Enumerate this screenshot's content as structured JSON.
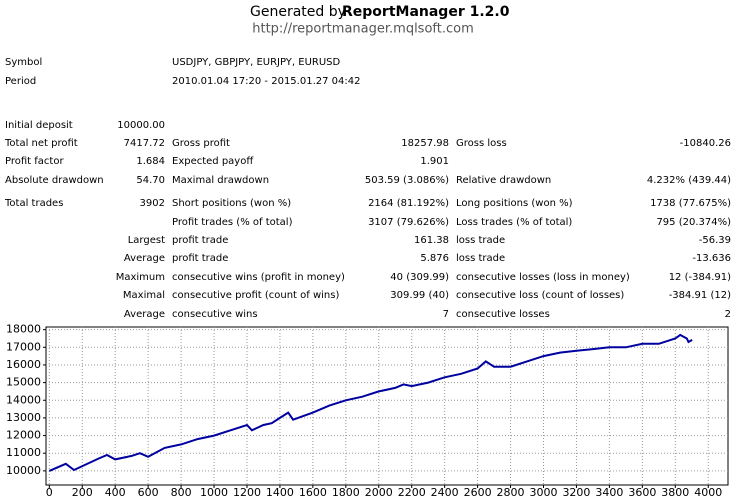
{
  "header": {
    "prefix": "Generated by",
    "app": "ReportManager 1.2.0",
    "url": "http://reportmanager.mqlsoft.com"
  },
  "info": [
    {
      "label": "Symbol",
      "value": "USDJPY, GBPJPY, EURJPY, EURUSD"
    },
    {
      "label": "Period",
      "value": "2010.01.04 17:20 - 2015.01.27 04:42"
    }
  ],
  "stats": [
    {
      "label1": "Initial deposit",
      "value1": "10000.00"
    },
    {
      "label1": "Total net profit",
      "value1": "7417.72",
      "label2": "Gross profit",
      "value2": "18257.98",
      "label3": "Gross loss",
      "value3": "-10840.26"
    },
    {
      "label1": "Profit factor",
      "value1": "1.684",
      "label2": "Expected payoff",
      "value2": "1.901"
    },
    {
      "label1": "Absolute drawdown",
      "value1": "54.70",
      "label2": "Maximal drawdown",
      "value2": "503.59 (3.086%)",
      "label3": "Relative drawdown",
      "value3": "4.232% (439.44)"
    },
    {
      "label1": "Total trades",
      "value1": "3902",
      "label2": "Short positions (won %)",
      "value2": "2164 (81.192%)",
      "label3": "Long positions (won %)",
      "value3": "1738 (77.675%)"
    },
    {
      "label2": "Profit trades (% of total)",
      "value2": "3107 (79.626%)",
      "label3": "Loss trades (% of total)",
      "value3": "795 (20.374%)"
    },
    {
      "value1": "Largest",
      "label2": "profit trade",
      "value2": "161.38",
      "label3": "loss trade",
      "value3": "-56.39"
    },
    {
      "value1": "Average",
      "label2": "profit trade",
      "value2": "5.876",
      "label3": "loss trade",
      "value3": "-13.636"
    },
    {
      "value1": "Maximum",
      "label2": "consecutive wins (profit in money)",
      "value2": "40 (309.99)",
      "label3": "consecutive losses (loss in money)",
      "value3": "12 (-384.91)"
    },
    {
      "value1": "Maximal",
      "label2": "consecutive profit (count of wins)",
      "value2": "309.99 (40)",
      "label3": "consecutive loss (count of losses)",
      "value3": "-384.91 (12)"
    },
    {
      "value1": "Average",
      "label2": "consecutive wins",
      "value2": "7",
      "label3": "consecutive losses",
      "value3": "2"
    }
  ],
  "chart_data": {
    "type": "line",
    "color": "#0000a0",
    "grid": true,
    "x": [
      0,
      100,
      150,
      300,
      350,
      400,
      500,
      550,
      600,
      700,
      800,
      900,
      1000,
      1100,
      1200,
      1230,
      1300,
      1350,
      1400,
      1450,
      1480,
      1600,
      1700,
      1800,
      1900,
      2000,
      2100,
      2150,
      2200,
      2300,
      2400,
      2500,
      2600,
      2650,
      2700,
      2800,
      2900,
      3000,
      3100,
      3200,
      3300,
      3400,
      3500,
      3600,
      3700,
      3800,
      3830,
      3870,
      3880,
      3902
    ],
    "values": [
      10000,
      10400,
      10050,
      10700,
      10900,
      10650,
      10850,
      11000,
      10800,
      11300,
      11500,
      11800,
      12000,
      12300,
      12600,
      12300,
      12600,
      12700,
      13000,
      13300,
      12900,
      13300,
      13700,
      14000,
      14200,
      14500,
      14700,
      14900,
      14800,
      15000,
      15300,
      15500,
      15800,
      16200,
      15900,
      15900,
      16200,
      16500,
      16700,
      16800,
      16900,
      17000,
      17000,
      17200,
      17200,
      17500,
      17700,
      17500,
      17300,
      17418
    ],
    "xlim": [
      -20,
      4120
    ],
    "ylim": [
      9200,
      18150
    ],
    "xticks": [
      0,
      200,
      400,
      600,
      800,
      1000,
      1200,
      1400,
      1600,
      1800,
      2000,
      2200,
      2400,
      2600,
      2800,
      3000,
      3200,
      3400,
      3600,
      3800,
      4000
    ],
    "yticks": [
      10000,
      11000,
      12000,
      13000,
      14000,
      15000,
      16000,
      17000,
      18000
    ]
  }
}
